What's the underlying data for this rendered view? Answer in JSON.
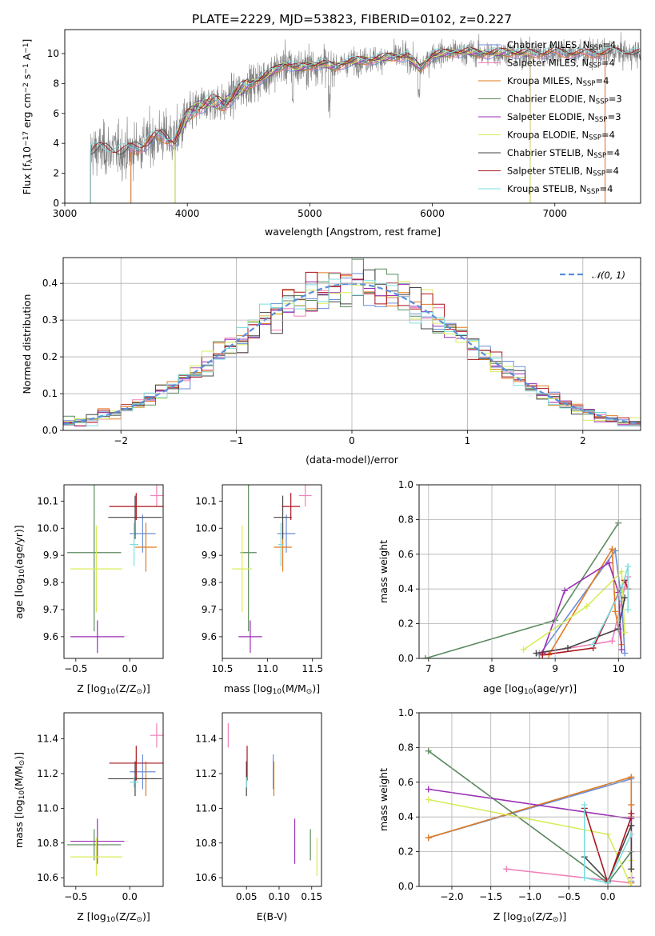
{
  "title": "PLATE=2229, MJD=53823, FIBERID=0102, z=0.227",
  "colors": {
    "Chabrier MILES": "#6b8ed6",
    "Salpeter MILES": "#f07fb8",
    "Kroupa MILES": "#e07b20",
    "Chabrier ELODIE": "#5b8a5e",
    "Salpeter ELODIE": "#9b2fb5",
    "Kroupa ELODIE": "#d8ec5a",
    "Chabrier STELIB": "#444444",
    "Salpeter STELIB": "#a8161e",
    "Kroupa STELIB": "#7ddde0",
    "data": "#808080",
    "normal": "#5b8ed8"
  },
  "chart_data": [
    {
      "id": "spectrum",
      "type": "line",
      "title": "PLATE=2229, MJD=53823, FIBERID=0102, z=0.227",
      "xlabel": "wavelength [Angstrom, rest frame]",
      "ylabel_parts": [
        "Flux [f",
        "λ",
        "10",
        "−17",
        " erg cm",
        "−2",
        " s",
        "−1",
        " A",
        "−1",
        "]"
      ],
      "xlim": [
        3000,
        7700
      ],
      "ylim": [
        0,
        11.6
      ],
      "xticks": [
        "3000",
        "4000",
        "5000",
        "6000",
        "7000"
      ],
      "yticks": [
        "0",
        "2",
        "4",
        "6",
        "8",
        "10"
      ],
      "legend_loc": "top-right",
      "legend": [
        {
          "name": "Chabrier MILES",
          "n": "4"
        },
        {
          "name": "Salpeter MILES",
          "n": "4"
        },
        {
          "name": "Kroupa MILES",
          "n": "4"
        },
        {
          "name": "Chabrier ELODIE",
          "n": "3"
        },
        {
          "name": "Salpeter ELODIE",
          "n": "3"
        },
        {
          "name": "Kroupa ELODIE",
          "n": "4"
        },
        {
          "name": "Chabrier STELIB",
          "n": "4"
        },
        {
          "name": "Salpeter STELIB",
          "n": "4"
        },
        {
          "name": "Kroupa STELIB",
          "n": "4"
        }
      ],
      "data_range": [
        3210,
        7700
      ],
      "miles_range": [
        3540,
        7410
      ],
      "elodie_range": [
        3900,
        6800
      ],
      "stelib_range": [
        3210,
        7700
      ],
      "continuum": [
        [
          3210,
          3.5
        ],
        [
          3400,
          3.6
        ],
        [
          3500,
          3.4
        ],
        [
          3600,
          3.8
        ],
        [
          3700,
          4.2
        ],
        [
          3800,
          4.5
        ],
        [
          3900,
          4.2
        ],
        [
          4000,
          5.8
        ],
        [
          4100,
          6.5
        ],
        [
          4200,
          6.8
        ],
        [
          4300,
          6.6
        ],
        [
          4400,
          7.4
        ],
        [
          4500,
          7.9
        ],
        [
          4600,
          8.3
        ],
        [
          4700,
          8.8
        ],
        [
          4800,
          9.3
        ],
        [
          4900,
          9.0
        ],
        [
          5000,
          9.2
        ],
        [
          5100,
          9.3
        ],
        [
          5200,
          9.1
        ],
        [
          5300,
          9.4
        ],
        [
          5400,
          9.5
        ],
        [
          5500,
          9.6
        ],
        [
          5600,
          9.7
        ],
        [
          5700,
          9.8
        ],
        [
          5800,
          9.8
        ],
        [
          5900,
          9.0
        ],
        [
          6000,
          9.9
        ],
        [
          6100,
          10.0
        ],
        [
          6200,
          10.1
        ],
        [
          6300,
          10.1
        ],
        [
          6400,
          10.0
        ],
        [
          6500,
          10.0
        ],
        [
          6600,
          10.1
        ],
        [
          6700,
          10.0
        ],
        [
          6800,
          10.0
        ],
        [
          6900,
          10.0
        ],
        [
          7000,
          10.1
        ],
        [
          7100,
          10.0
        ],
        [
          7200,
          10.0
        ],
        [
          7300,
          10.0
        ],
        [
          7400,
          10.0
        ],
        [
          7500,
          10.1
        ],
        [
          7600,
          10.0
        ],
        [
          7700,
          10.0
        ]
      ]
    },
    {
      "id": "residuals",
      "type": "bar",
      "xlabel": "(data-model)/error",
      "ylabel": "Normed distribution",
      "xlim": [
        -2.5,
        2.5
      ],
      "ylim": [
        0,
        0.47
      ],
      "xticks": [
        "−2",
        "−1",
        "0",
        "1",
        "2"
      ],
      "yticks": [
        "0.0",
        "0.1",
        "0.2",
        "0.3",
        "0.4"
      ],
      "bin_width": 0.1,
      "grid": true,
      "legend_loc": "top-right",
      "legend": [
        "𝒩(0, 1)"
      ]
    },
    {
      "id": "age-vs-z",
      "type": "scatter",
      "xlabel_parts": [
        "Z [log",
        "10",
        "(Z/Z",
        "⊙",
        ")]"
      ],
      "ylabel_parts": [
        "age  [log",
        "10",
        "(age/yr)]"
      ],
      "xlim": [
        -0.61,
        0.31
      ],
      "ylim": [
        9.52,
        10.16
      ],
      "xticks": [
        "−0.5",
        "0.0"
      ],
      "yticks": [
        "9.6",
        "9.7",
        "9.8",
        "9.9",
        "10.0",
        "10.1"
      ],
      "points": [
        {
          "c": "Chabrier MILES",
          "x": 0.12,
          "xe": 0.12,
          "y": 9.98,
          "ye": 0.07
        },
        {
          "c": "Salpeter MILES",
          "x": 0.25,
          "xe": 0.06,
          "y": 10.12,
          "ye": 0.04
        },
        {
          "c": "Kroupa MILES",
          "x": 0.15,
          "xe": 0.1,
          "y": 9.93,
          "ye": 0.09
        },
        {
          "c": "Chabrier ELODIE",
          "x": -0.33,
          "xe": 0.25,
          "y": 9.91,
          "ye": 0.29
        },
        {
          "c": "Salpeter ELODIE",
          "x": -0.3,
          "xe": 0.25,
          "y": 9.6,
          "ye": 0.06
        },
        {
          "c": "Kroupa ELODIE",
          "x": -0.31,
          "xe": 0.24,
          "y": 9.85,
          "ye": 0.16
        },
        {
          "c": "Chabrier STELIB",
          "x": 0.05,
          "xe": 0.25,
          "y": 10.04,
          "ye": 0.08
        },
        {
          "c": "Salpeter STELIB",
          "x": 0.06,
          "xe": 0.25,
          "y": 10.08,
          "ye": 0.05
        },
        {
          "c": "Kroupa STELIB",
          "x": 0.04,
          "xe": 0.04,
          "y": 9.94,
          "ye": 0.08
        }
      ]
    },
    {
      "id": "age-vs-mass",
      "type": "scatter",
      "xlabel_parts": [
        "mass [log",
        "10",
        "(M/M",
        "⊙",
        ")]"
      ],
      "xlim": [
        10.5,
        11.6
      ],
      "ylim": [
        9.52,
        10.16
      ],
      "xticks": [
        "10.5",
        "11.0",
        "11.5"
      ],
      "yticks": [
        "9.6",
        "9.7",
        "9.8",
        "9.9",
        "10.0",
        "10.1"
      ],
      "points": [
        {
          "c": "Chabrier MILES",
          "x": 11.21,
          "xe": 0.1,
          "y": 9.98,
          "ye": 0.07
        },
        {
          "c": "Salpeter MILES",
          "x": 11.42,
          "xe": 0.07,
          "y": 10.12,
          "ye": 0.04
        },
        {
          "c": "Kroupa MILES",
          "x": 11.17,
          "xe": 0.1,
          "y": 9.93,
          "ye": 0.09
        },
        {
          "c": "Chabrier ELODIE",
          "x": 10.79,
          "xe": 0.09,
          "y": 9.91,
          "ye": 0.29
        },
        {
          "c": "Salpeter ELODIE",
          "x": 10.81,
          "xe": 0.13,
          "y": 9.6,
          "ye": 0.06
        },
        {
          "c": "Kroupa ELODIE",
          "x": 10.72,
          "xe": 0.11,
          "y": 9.85,
          "ye": 0.16
        },
        {
          "c": "Chabrier STELIB",
          "x": 11.17,
          "xe": 0.1,
          "y": 10.04,
          "ye": 0.08
        },
        {
          "c": "Salpeter STELIB",
          "x": 11.26,
          "xe": 0.1,
          "y": 10.08,
          "ye": 0.05
        },
        {
          "c": "Kroupa STELIB",
          "x": 11.15,
          "xe": 0.03,
          "y": 9.94,
          "ye": 0.08
        }
      ]
    },
    {
      "id": "weight-vs-age",
      "type": "line",
      "xlabel_parts": [
        "age  [log",
        "10",
        "(age/yr)]"
      ],
      "ylabel": "mass weight",
      "xlim": [
        6.85,
        10.35
      ],
      "ylim": [
        0,
        1.0
      ],
      "xticks": [
        "7",
        "8",
        "9",
        "10"
      ],
      "yticks": [
        "0.0",
        "0.2",
        "0.4",
        "0.6",
        "0.8",
        "1.0"
      ],
      "grid": true,
      "series": [
        {
          "c": "Chabrier MILES",
          "x": [
            8.75,
            9.95,
            10.05,
            10.1
          ],
          "y": [
            0.02,
            0.62,
            0.33,
            0.03
          ]
        },
        {
          "c": "Salpeter MILES",
          "x": [
            8.75,
            9.9,
            10.1,
            10.15
          ],
          "y": [
            0.03,
            0.1,
            0.41,
            0.47
          ]
        },
        {
          "c": "Kroupa MILES",
          "x": [
            8.9,
            9.9,
            9.95,
            10.05
          ],
          "y": [
            0.02,
            0.63,
            0.27,
            0.08
          ]
        },
        {
          "c": "Chabrier ELODIE",
          "x": [
            6.95,
            9.0,
            10.0
          ],
          "y": [
            0.0,
            0.22,
            0.78
          ]
        },
        {
          "c": "Salpeter ELODIE",
          "x": [
            8.8,
            9.15,
            9.85,
            10.0,
            10.05
          ],
          "y": [
            0.03,
            0.39,
            0.55,
            0.38,
            0.05
          ]
        },
        {
          "c": "Kroupa ELODIE",
          "x": [
            8.5,
            9.5,
            10.05,
            10.1
          ],
          "y": [
            0.05,
            0.3,
            0.5,
            0.15
          ]
        },
        {
          "c": "Chabrier STELIB",
          "x": [
            8.7,
            9.2,
            10.0,
            10.1
          ],
          "y": [
            0.03,
            0.06,
            0.17,
            0.35
          ]
        },
        {
          "c": "Salpeter STELIB",
          "x": [
            8.8,
            9.6,
            10.1,
            10.15
          ],
          "y": [
            0.02,
            0.06,
            0.45,
            0.4
          ]
        },
        {
          "c": "Kroupa STELIB",
          "x": [
            9.6,
            10.05,
            10.15,
            10.15
          ],
          "y": [
            0.08,
            0.4,
            0.53,
            0.28
          ]
        }
      ]
    },
    {
      "id": "mass-vs-z",
      "type": "scatter",
      "xlabel_parts": [
        "Z [log",
        "10",
        "(Z/Z",
        "⊙",
        ")]"
      ],
      "ylabel_parts": [
        "mass [log",
        "10",
        "(M/M",
        "⊙",
        ")]"
      ],
      "xlim": [
        -0.61,
        0.31
      ],
      "ylim": [
        10.55,
        11.55
      ],
      "xticks": [
        "−0.5",
        "0.0"
      ],
      "yticks": [
        "10.6",
        "10.8",
        "11.0",
        "11.2",
        "11.4"
      ],
      "points": [
        {
          "c": "Chabrier MILES",
          "x": 0.12,
          "xe": 0.12,
          "y": 11.21,
          "ye": 0.1
        },
        {
          "c": "Salpeter MILES",
          "x": 0.25,
          "xe": 0.06,
          "y": 11.42,
          "ye": 0.07
        },
        {
          "c": "Kroupa MILES",
          "x": 0.15,
          "xe": 0.1,
          "y": 11.17,
          "ye": 0.1
        },
        {
          "c": "Chabrier ELODIE",
          "x": -0.33,
          "xe": 0.25,
          "y": 10.79,
          "ye": 0.09
        },
        {
          "c": "Salpeter ELODIE",
          "x": -0.3,
          "xe": 0.25,
          "y": 10.81,
          "ye": 0.13
        },
        {
          "c": "Kroupa ELODIE",
          "x": -0.31,
          "xe": 0.24,
          "y": 10.72,
          "ye": 0.11
        },
        {
          "c": "Chabrier STELIB",
          "x": 0.05,
          "xe": 0.25,
          "y": 11.17,
          "ye": 0.1
        },
        {
          "c": "Salpeter STELIB",
          "x": 0.06,
          "xe": 0.25,
          "y": 11.26,
          "ye": 0.1
        },
        {
          "c": "Kroupa STELIB",
          "x": 0.04,
          "xe": 0.04,
          "y": 11.15,
          "ye": 0.03
        }
      ]
    },
    {
      "id": "mass-vs-ebv",
      "type": "scatter",
      "xlabel": "E(B-V)",
      "xlim": [
        0.013,
        0.165
      ],
      "ylim": [
        10.55,
        11.55
      ],
      "xticks": [
        "0.05",
        "0.10",
        "0.15"
      ],
      "yticks": [
        "10.6",
        "10.8",
        "11.0",
        "11.2",
        "11.4"
      ],
      "points": [
        {
          "c": "Chabrier MILES",
          "x": 0.091,
          "y": 11.21,
          "ye": 0.1
        },
        {
          "c": "Salpeter MILES",
          "x": 0.022,
          "y": 11.42,
          "ye": 0.07
        },
        {
          "c": "Kroupa MILES",
          "x": 0.092,
          "y": 11.17,
          "ye": 0.1
        },
        {
          "c": "Chabrier ELODIE",
          "x": 0.148,
          "y": 10.79,
          "ye": 0.09
        },
        {
          "c": "Salpeter ELODIE",
          "x": 0.124,
          "y": 10.81,
          "ye": 0.13
        },
        {
          "c": "Kroupa ELODIE",
          "x": 0.158,
          "y": 10.72,
          "ye": 0.11
        },
        {
          "c": "Chabrier STELIB",
          "x": 0.05,
          "y": 11.17,
          "ye": 0.1
        },
        {
          "c": "Salpeter STELIB",
          "x": 0.051,
          "y": 11.26,
          "ye": 0.1
        },
        {
          "c": "Kroupa STELIB",
          "x": 0.05,
          "y": 11.15,
          "ye": 0.03
        }
      ]
    },
    {
      "id": "weight-vs-z",
      "type": "line",
      "xlabel_parts": [
        "Z [log",
        "10",
        "(Z/Z",
        "⊙",
        ")]"
      ],
      "ylabel": "mass weight",
      "xlim": [
        -2.42,
        0.42
      ],
      "ylim": [
        0,
        1.0
      ],
      "xticks": [
        "−2.0",
        "−1.5",
        "−1.0",
        "−0.5",
        "0.0"
      ],
      "yticks": [
        "0.0",
        "0.2",
        "0.4",
        "0.6",
        "0.8",
        "1.0"
      ],
      "grid": true,
      "series": [
        {
          "c": "Chabrier MILES",
          "x": [
            -2.3,
            0.3,
            0.3,
            0.3
          ],
          "y": [
            0.28,
            0.62,
            0.35,
            0.03
          ]
        },
        {
          "c": "Salpeter MILES",
          "x": [
            -1.3,
            0.3,
            0.3
          ],
          "y": [
            0.1,
            0.02,
            0.47
          ]
        },
        {
          "c": "Kroupa MILES",
          "x": [
            -2.3,
            0.3,
            0.3,
            0.3
          ],
          "y": [
            0.28,
            0.63,
            0.47,
            0.02
          ]
        },
        {
          "c": "Chabrier ELODIE",
          "x": [
            -2.3,
            0.0,
            0.3
          ],
          "y": [
            0.78,
            0.02,
            0.2
          ]
        },
        {
          "c": "Salpeter ELODIE",
          "x": [
            -2.3,
            0.3,
            0.3
          ],
          "y": [
            0.56,
            0.39,
            0.05
          ]
        },
        {
          "c": "Kroupa ELODIE",
          "x": [
            -2.3,
            0.0,
            0.3,
            0.3
          ],
          "y": [
            0.5,
            0.3,
            0.0,
            0.15
          ]
        },
        {
          "c": "Chabrier STELIB",
          "x": [
            -0.3,
            0.0,
            0.3,
            0.3
          ],
          "y": [
            0.17,
            0.03,
            0.35,
            0.1
          ]
        },
        {
          "c": "Salpeter STELIB",
          "x": [
            -0.3,
            0.0,
            0.3,
            0.3
          ],
          "y": [
            0.45,
            0.02,
            0.4,
            0.42
          ]
        },
        {
          "c": "Kroupa STELIB",
          "x": [
            -0.3,
            -0.3,
            0.0,
            0.3
          ],
          "y": [
            0.47,
            0.05,
            0.02,
            0.3
          ]
        }
      ]
    }
  ]
}
